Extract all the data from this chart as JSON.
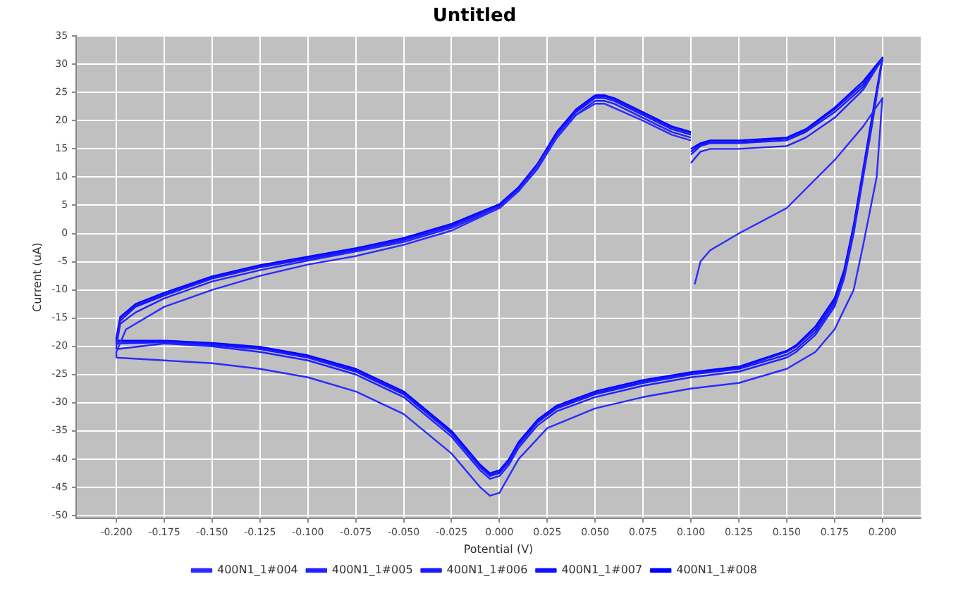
{
  "chart_data": {
    "type": "line",
    "title": "Untitled",
    "xlabel": "Potential (V)",
    "ylabel": "Current (uA)",
    "x": [
      0.1,
      0.105,
      0.11,
      0.125,
      0.15,
      0.16,
      0.175,
      0.19,
      0.2,
      0.195,
      0.19,
      0.185,
      0.18,
      0.175,
      0.165,
      0.155,
      0.15,
      0.125,
      0.1,
      0.075,
      0.05,
      0.03,
      0.02,
      0.01,
      0.005,
      0,
      -0.005,
      -0.01,
      -0.025,
      -0.05,
      -0.075,
      -0.1,
      -0.125,
      -0.15,
      -0.175,
      -0.2,
      -0.2,
      -0.198,
      -0.19,
      -0.175,
      -0.15,
      -0.125,
      -0.1,
      -0.075,
      -0.05,
      -0.025,
      0,
      0.01,
      0.02,
      0.03,
      0.04,
      0.05,
      0.055,
      0.06,
      0.075,
      0.09,
      0.1
    ],
    "series": [
      {
        "name": "400N1_1#004",
        "color": "#2b2bff",
        "x": [
          0.102,
          0.105,
          0.11,
          0.125,
          0.15,
          0.175,
          0.19,
          0.2,
          0.197,
          0.19,
          0.185,
          0.175,
          0.165,
          0.15,
          0.125,
          0.1,
          0.075,
          0.05,
          0.025,
          0.01,
          0.005,
          0,
          -0.005,
          -0.01,
          -0.025,
          -0.05,
          -0.075,
          -0.1,
          -0.125,
          -0.15,
          -0.175,
          -0.2,
          -0.2,
          -0.195,
          -0.175,
          -0.15,
          -0.125,
          -0.1,
          -0.075,
          -0.05,
          -0.025,
          0,
          0.01,
          0.02,
          0.03,
          0.04,
          0.05,
          0.055,
          0.075,
          0.09,
          0.1
        ],
        "values": [
          -9,
          -5,
          -3,
          0,
          4.5,
          13,
          19,
          24,
          10,
          -2,
          -10,
          -17,
          -21,
          -24,
          -26.5,
          -27.5,
          -29,
          -31,
          -34.5,
          -40,
          -43,
          -46,
          -46.5,
          -45,
          -39,
          -32,
          -28,
          -25.5,
          -24,
          -23,
          -22.5,
          -22,
          -21,
          -17,
          -13,
          -10,
          -7.5,
          -5.5,
          -4,
          -2,
          0.5,
          4.5,
          7.5,
          12,
          17,
          21,
          23,
          23,
          20,
          17.5,
          16.5
        ]
      },
      {
        "name": "400N1_1#005",
        "color": "#2222ff",
        "values": [
          12.5,
          14.5,
          15,
          15,
          15.5,
          17,
          20.5,
          25.5,
          31,
          20,
          10,
          0,
          -8,
          -13,
          -18,
          -21,
          -22,
          -24.5,
          -25.5,
          -27,
          -29,
          -31.5,
          -34,
          -38,
          -41,
          -43,
          -43.5,
          -42,
          -36,
          -29,
          -25,
          -22.5,
          -21,
          -20,
          -19.5,
          -20.5,
          -20,
          -16,
          -14,
          -11.5,
          -8.5,
          -6.5,
          -4.8,
          -3.2,
          -1.5,
          1,
          4.5,
          7.5,
          11.5,
          17,
          21,
          23.5,
          23.5,
          23,
          20.5,
          18,
          17
        ]
      },
      {
        "name": "400N1_1#006",
        "color": "#1a1aff",
        "values": [
          14,
          15.5,
          16,
          16,
          16.5,
          18,
          21.5,
          26,
          31,
          20.5,
          10.5,
          0.5,
          -7.5,
          -12.5,
          -17.5,
          -20.5,
          -21.5,
          -24,
          -25,
          -26.5,
          -28.5,
          -31,
          -33.5,
          -37.5,
          -40.5,
          -42.5,
          -43,
          -41.5,
          -35.5,
          -28.5,
          -24.5,
          -22,
          -20.5,
          -19.8,
          -19.3,
          -19.5,
          -19.5,
          -15.5,
          -13,
          -11,
          -8,
          -6,
          -4.5,
          -3,
          -1.2,
          1.3,
          4.8,
          7.8,
          12,
          17.5,
          21.5,
          24,
          24,
          23.5,
          21,
          18.5,
          17.5
        ]
      },
      {
        "name": "400N1_1#007",
        "color": "#1111ff",
        "values": [
          14.5,
          15.8,
          16.2,
          16.2,
          16.8,
          18.3,
          22,
          26.5,
          31,
          21,
          11,
          1,
          -7,
          -12,
          -17,
          -20,
          -21,
          -23.8,
          -24.8,
          -26.3,
          -28.3,
          -30.8,
          -33.3,
          -37.3,
          -40.3,
          -42.3,
          -42.8,
          -41.3,
          -35.3,
          -28.3,
          -24.3,
          -21.8,
          -20.3,
          -19.6,
          -19.1,
          -19.2,
          -19,
          -15,
          -12.8,
          -10.8,
          -7.8,
          -5.8,
          -4.3,
          -2.8,
          -1,
          1.5,
          5,
          8,
          12.2,
          17.8,
          21.8,
          24.3,
          24.3,
          23.8,
          21.3,
          18.8,
          17.8
        ]
      },
      {
        "name": "400N1_1#008",
        "color": "#0000ff",
        "values": [
          15,
          16,
          16.5,
          16.5,
          17,
          18.5,
          22.3,
          27,
          31.2,
          21.5,
          11.5,
          1.5,
          -6.5,
          -11.5,
          -16.5,
          -19.8,
          -20.8,
          -23.6,
          -24.6,
          -26,
          -28,
          -30.5,
          -33,
          -37,
          -40,
          -42,
          -42.5,
          -41,
          -35,
          -28,
          -24,
          -21.6,
          -20.1,
          -19.4,
          -19,
          -19,
          -18.5,
          -14.8,
          -12.5,
          -10.5,
          -7.6,
          -5.6,
          -4.1,
          -2.6,
          -0.8,
          1.7,
          5.2,
          8.2,
          12.4,
          18,
          22,
          24.5,
          24.5,
          24,
          21.5,
          19,
          18
        ]
      }
    ],
    "xlim": [
      -0.221,
      0.22
    ],
    "ylim": [
      -50.5,
      35
    ],
    "xticks": [
      {
        "value": -0.2,
        "label": "-0.200"
      },
      {
        "value": -0.175,
        "label": "-0.175"
      },
      {
        "value": -0.15,
        "label": "-0.150"
      },
      {
        "value": -0.125,
        "label": "-0.125"
      },
      {
        "value": -0.1,
        "label": "-0.100"
      },
      {
        "value": -0.075,
        "label": "-0.075"
      },
      {
        "value": -0.05,
        "label": "-0.050"
      },
      {
        "value": -0.025,
        "label": "-0.025"
      },
      {
        "value": 0,
        "label": "0.000"
      },
      {
        "value": 0.025,
        "label": "0.025"
      },
      {
        "value": 0.05,
        "label": "0.050"
      },
      {
        "value": 0.075,
        "label": "0.075"
      },
      {
        "value": 0.1,
        "label": "0.100"
      },
      {
        "value": 0.125,
        "label": "0.125"
      },
      {
        "value": 0.15,
        "label": "0.150"
      },
      {
        "value": 0.175,
        "label": "0.175"
      },
      {
        "value": 0.2,
        "label": "0.200"
      }
    ],
    "yticks": [
      -50,
      -45,
      -40,
      -35,
      -30,
      -25,
      -20,
      -15,
      -10,
      -5,
      0,
      5,
      10,
      15,
      20,
      25,
      30,
      35
    ],
    "grid": true,
    "legend": "bottom",
    "marker": "none",
    "line_style": "solid"
  }
}
